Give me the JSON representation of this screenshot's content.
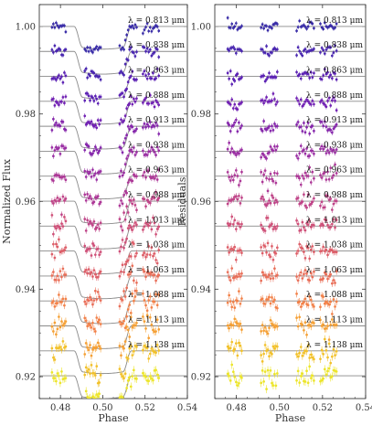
{
  "chart_data": [
    {
      "panel": "flux",
      "type": "scatter",
      "xlabel": "Phase",
      "ylabel": "Normalized Flux",
      "xlim": [
        0.47,
        0.54
      ],
      "ylim": [
        0.915,
        1.005
      ],
      "xticks": [
        "0.48",
        "0.50",
        "0.52",
        "0.54"
      ],
      "xtick_values": [
        0.48,
        0.5,
        0.52,
        0.54
      ],
      "yticks": [
        "1.00",
        "0.98",
        "0.96",
        "0.94",
        "0.92"
      ],
      "ytick_values": [
        1.0,
        0.98,
        0.96,
        0.94,
        0.92
      ],
      "grid": false,
      "model": {
        "ingress_start": 0.4865,
        "ingress_end": 0.4905,
        "egress_start": 0.5095,
        "egress_end": 0.5135,
        "depth": 0.0048
      },
      "series": [
        {
          "name": "λ = 0.813 μm",
          "offset": 1.0,
          "color": "#3b2ea8"
        },
        {
          "name": "λ = 0.838 μm",
          "offset": 0.9943,
          "color": "#4a27b0"
        },
        {
          "name": "λ = 0.863 μm",
          "offset": 0.9886,
          "color": "#5c22b4"
        },
        {
          "name": "λ = 0.888 μm",
          "offset": 0.9829,
          "color": "#7121b3"
        },
        {
          "name": "λ = 0.913 μm",
          "offset": 0.9772,
          "color": "#8526ab"
        },
        {
          "name": "λ = 0.938 μm",
          "offset": 0.9715,
          "color": "#9a2ea3"
        },
        {
          "name": "λ = 0.963 μm",
          "offset": 0.9658,
          "color": "#ad3897"
        },
        {
          "name": "λ = 0.988 μm",
          "offset": 0.9601,
          "color": "#bf4488"
        },
        {
          "name": "λ = 1.013 μm",
          "offset": 0.9544,
          "color": "#cf5179"
        },
        {
          "name": "λ = 1.038 μm",
          "offset": 0.9487,
          "color": "#dd5f69"
        },
        {
          "name": "λ = 1.063 μm",
          "offset": 0.943,
          "color": "#e96f59"
        },
        {
          "name": "λ = 1.088 μm",
          "offset": 0.9373,
          "color": "#f28149"
        },
        {
          "name": "λ = 1.113 μm",
          "offset": 0.9316,
          "color": "#f5a035"
        },
        {
          "name": "λ = 1.138 μm",
          "offset": 0.9259,
          "color": "#f2c12a"
        },
        {
          "name": "",
          "offset": 0.9202,
          "color": "#ece52a"
        }
      ]
    },
    {
      "panel": "residuals",
      "type": "scatter",
      "xlabel": "Phase",
      "ylabel": "Residuals",
      "xlim": [
        0.47,
        0.54
      ],
      "ylim": [
        0.915,
        1.005
      ],
      "xticks": [
        "0.48",
        "0.50",
        "0.52",
        "0.54"
      ],
      "xtick_values": [
        0.48,
        0.5,
        0.52,
        0.54
      ],
      "yticks": [
        "1.00",
        "0.98",
        "0.96",
        "0.94",
        "0.92"
      ],
      "ytick_values": [
        1.0,
        0.98,
        0.96,
        0.94,
        0.92
      ],
      "grid": false,
      "series_ref": "same wavelength channels and offsets as flux panel, residual scatter about zero"
    }
  ]
}
